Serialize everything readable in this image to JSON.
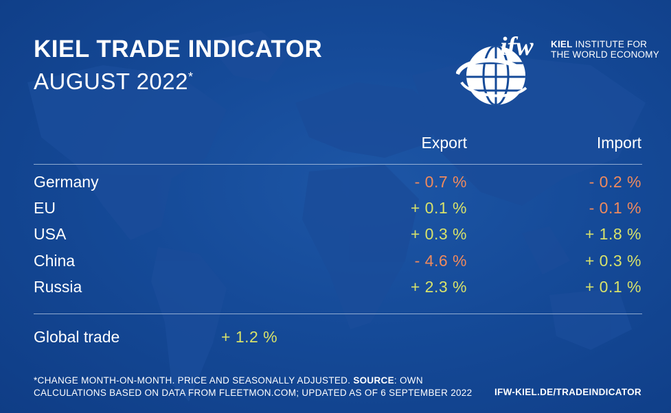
{
  "header": {
    "title": "KIEL TRADE INDICATOR",
    "subtitle": "AUGUST 2022",
    "subtitle_mark": "*"
  },
  "logo": {
    "wordmark": "ifw",
    "line1_bold": "KIEL",
    "line1_rest": " INSTITUTE FOR",
    "line2": "THE WORLD ECONOMY"
  },
  "table": {
    "columns": [
      "Export",
      "Import"
    ],
    "rows": [
      {
        "country": "Germany",
        "export": "- 0.7 %",
        "import": "- 0.2 %"
      },
      {
        "country": "EU",
        "export": "+ 0.1 %",
        "import": "- 0.1 %"
      },
      {
        "country": "USA",
        "export": "+ 0.3 %",
        "import": "+ 1.8 %"
      },
      {
        "country": "China",
        "export": "- 4.6 %",
        "import": "+ 0.3 %"
      },
      {
        "country": "Russia",
        "export": "+ 2.3 %",
        "import": "+ 0.1 %"
      }
    ],
    "global": {
      "label": "Global trade",
      "value": "+ 1.2 %"
    }
  },
  "colors": {
    "background": "#154a98",
    "negative": "#f08a5d",
    "positive": "#d8e26a",
    "text": "#ffffff"
  },
  "footer": {
    "note_part1": "*CHANGE MONTH-ON-MONTH. PRICE AND SEASONALLY ADJUSTED. ",
    "source_label": "SOURCE",
    "note_part2": ": OWN",
    "note_line2": "CALCULATIONS BASED ON DATA FROM FLEETMON.COM; UPDATED AS OF 6 SEPTEMBER 2022",
    "url": "IFW-KIEL.DE/TRADEINDICATOR"
  }
}
